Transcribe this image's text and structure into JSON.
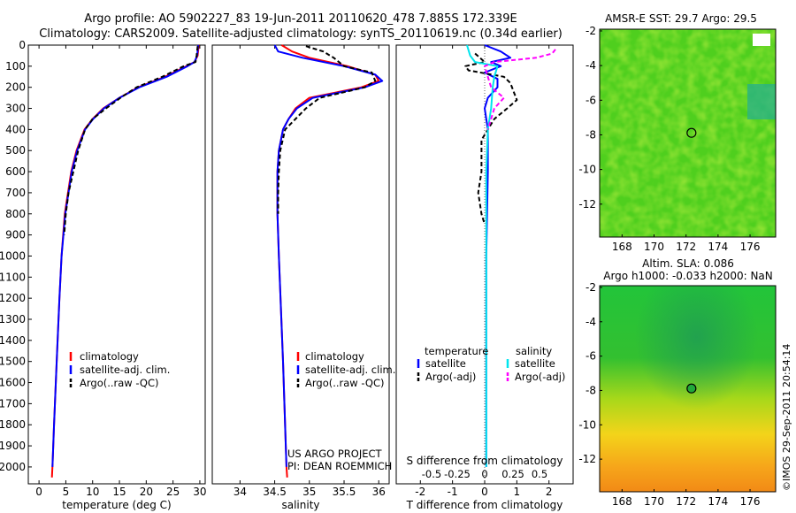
{
  "header": {
    "line1": "Argo profile: AO 5902227_83 19-Jun-2011 20110620_478 7.885S 172.339E",
    "line2": "Climatology: CARS2009. Satellite-adjusted climatology: synTS_20110619.nc (0.34d earlier)"
  },
  "colors": {
    "climatology": "#ff0000",
    "satellite": "#0000ff",
    "argo": "#000000",
    "salinity_satellite": "#00e5ee",
    "salinity_argo": "#ff00ff"
  },
  "chart_data": [
    {
      "type": "line",
      "id": "temperature",
      "xlabel": "temperature (deg C)",
      "ylabel": "",
      "xlim": [
        -2,
        31
      ],
      "ylim": [
        2080,
        0
      ],
      "x_ticks": [
        0,
        5,
        10,
        15,
        20,
        25,
        30
      ],
      "y_ticks": [
        0,
        100,
        200,
        300,
        400,
        500,
        600,
        700,
        800,
        900,
        1000,
        1100,
        1200,
        1300,
        1400,
        1500,
        1600,
        1700,
        1800,
        1900,
        2000
      ],
      "legend": [
        "climatology",
        "satellite-adj. clim.",
        "Argo(..raw -QC)"
      ],
      "legend_position": "bottom-left",
      "series": [
        {
          "name": "climatology",
          "color": "#ff0000",
          "style": "solid",
          "depth": [
            0,
            50,
            80,
            100,
            150,
            200,
            250,
            300,
            350,
            400,
            500,
            600,
            800,
            1000,
            1200,
            1500,
            1800,
            2000,
            2050
          ],
          "values": [
            29.8,
            29.6,
            29.0,
            27.5,
            23.5,
            18.5,
            15.0,
            12.0,
            10.0,
            8.5,
            7.0,
            6.0,
            4.8,
            4.2,
            3.8,
            3.3,
            2.8,
            2.5,
            2.4
          ]
        },
        {
          "name": "satellite-adj. clim.",
          "color": "#0000ff",
          "style": "solid",
          "depth": [
            0,
            50,
            80,
            100,
            150,
            200,
            250,
            300,
            350,
            400,
            500,
            600,
            800,
            1000,
            1200,
            1500,
            1800,
            2000
          ],
          "values": [
            29.7,
            29.5,
            29.0,
            27.7,
            23.8,
            18.7,
            15.0,
            12.1,
            10.1,
            8.6,
            7.1,
            6.1,
            4.9,
            4.2,
            3.8,
            3.3,
            2.8,
            2.5
          ]
        },
        {
          "name": "Argo(..raw -QC)",
          "color": "#000000",
          "style": "dash",
          "depth": [
            5,
            50,
            80,
            100,
            150,
            200,
            250,
            300,
            350,
            400,
            500,
            600,
            700,
            800,
            900
          ],
          "values": [
            29.6,
            29.4,
            29.2,
            27.0,
            23.0,
            18.2,
            15.2,
            12.5,
            10.0,
            8.6,
            7.3,
            6.4,
            5.5,
            5.0,
            4.7
          ]
        }
      ]
    },
    {
      "type": "line",
      "id": "salinity",
      "xlabel": "salinity",
      "ylabel": "",
      "xlim": [
        33.6,
        36.15
      ],
      "ylim": [
        2080,
        0
      ],
      "x_ticks": [
        34,
        34.5,
        35,
        35.5,
        36
      ],
      "legend": [
        "climatology",
        "satellite-adj. clim.",
        "Argo(..raw -QC)"
      ],
      "legend_position": "bottom-right",
      "annotation": [
        "US ARGO PROJECT",
        "PI: DEAN ROEMMICH"
      ],
      "series": [
        {
          "name": "climatology",
          "color": "#ff0000",
          "style": "solid",
          "depth": [
            0,
            30,
            60,
            100,
            140,
            170,
            200,
            250,
            300,
            350,
            400,
            500,
            600,
            800,
            1000,
            1500,
            2000,
            2050
          ],
          "values": [
            34.6,
            34.75,
            35.0,
            35.55,
            35.95,
            36.0,
            35.75,
            35.0,
            34.8,
            34.7,
            34.62,
            34.56,
            34.54,
            34.54,
            34.56,
            34.62,
            34.67,
            34.68
          ]
        },
        {
          "name": "satellite-adj. clim.",
          "color": "#0000ff",
          "style": "solid",
          "depth": [
            0,
            30,
            60,
            100,
            140,
            170,
            200,
            250,
            300,
            350,
            400,
            500,
            600,
            800,
            1000,
            1500,
            2000
          ],
          "values": [
            34.5,
            34.55,
            34.9,
            35.5,
            35.95,
            36.05,
            35.8,
            35.05,
            34.82,
            34.7,
            34.62,
            34.56,
            34.54,
            34.54,
            34.56,
            34.62,
            34.67
          ]
        },
        {
          "name": "Argo(..raw -QC)",
          "color": "#000000",
          "style": "dash",
          "depth": [
            5,
            30,
            60,
            100,
            130,
            170,
            200,
            250,
            300,
            350,
            400,
            500,
            600,
            700,
            800
          ],
          "values": [
            34.95,
            35.2,
            35.35,
            35.5,
            35.9,
            35.95,
            35.8,
            35.15,
            34.95,
            34.8,
            34.65,
            34.58,
            34.56,
            34.55,
            34.55
          ]
        }
      ]
    },
    {
      "type": "line",
      "id": "differences",
      "xlabel": "T difference from climatology",
      "xlabel_top": "S difference from climatology",
      "ylabel": "",
      "xlim": [
        -2.75,
        2.75
      ],
      "ylim": [
        2080,
        0
      ],
      "x_ticks": [
        -2,
        -1,
        0,
        1,
        2
      ],
      "s_ticks": [
        "-0.5",
        "-0.25",
        "0",
        "0.25",
        "0.5"
      ],
      "legend_titles": [
        "temperature",
        "salinity"
      ],
      "legend": [
        "satellite",
        "Argo(-adj)",
        "satellite",
        "Argo(-adj)"
      ],
      "legend_position": "bottom",
      "series": [
        {
          "name": "T satellite",
          "color": "#0000ff",
          "style": "solid",
          "depth": [
            0,
            30,
            60,
            80,
            100,
            130,
            160,
            200,
            250,
            300,
            400,
            600,
            1000,
            1500,
            2000
          ],
          "values": [
            0.0,
            0.5,
            0.8,
            0.2,
            0.5,
            0.0,
            0.4,
            0.4,
            0.1,
            0.0,
            0.1,
            0.1,
            0.05,
            0.05,
            0.05
          ]
        },
        {
          "name": "T Argo(-adj)",
          "color": "#000000",
          "style": "dash",
          "depth": [
            40,
            80,
            100,
            120,
            150,
            180,
            220,
            260,
            300,
            350,
            400,
            450,
            600,
            700,
            800,
            850
          ],
          "values": [
            -0.3,
            0.0,
            -0.6,
            -0.5,
            0.6,
            0.8,
            0.9,
            1.0,
            0.7,
            0.3,
            0.1,
            -0.1,
            -0.1,
            -0.2,
            -0.1,
            0.0
          ]
        },
        {
          "name": "S satellite",
          "color": "#00e5ee",
          "style": "solid",
          "depth": [
            0,
            50,
            80,
            100,
            150,
            200,
            300,
            400,
            600,
            1000,
            1500,
            2000
          ],
          "values": [
            -0.55,
            -0.45,
            -0.3,
            0.4,
            0.3,
            0.25,
            0.2,
            0.1,
            0.05,
            0.05,
            0.05,
            0.05
          ]
        },
        {
          "name": "S Argo(-adj)",
          "color": "#ff00ff",
          "style": "dash",
          "depth": [
            20,
            40,
            60,
            80,
            100,
            150,
            200,
            250,
            300,
            400
          ],
          "values": [
            2.2,
            2.1,
            1.6,
            0.3,
            0.0,
            0.1,
            0.2,
            0.6,
            0.3,
            0.1
          ]
        }
      ]
    }
  ],
  "maps": [
    {
      "id": "sst",
      "title": "AMSR-E SST: 29.7 Argo: 29.5",
      "x_ticks": [
        "168",
        "170",
        "172",
        "174",
        "176"
      ],
      "y_ticks": [
        "-2",
        "-4",
        "-6",
        "-8",
        "-10",
        "-12"
      ],
      "xlim": [
        166.6,
        177.6
      ],
      "ylim": [
        -13.9,
        -1.9
      ],
      "marker": {
        "lon": 172.339,
        "lat": -7.885
      }
    },
    {
      "id": "sla",
      "title_line1": "Altim. SLA: 0.086",
      "title_line2": "Argo h1000: -0.033 h2000: NaN",
      "x_ticks": [
        "168",
        "170",
        "172",
        "174",
        "176"
      ],
      "y_ticks": [
        "-2",
        "-4",
        "-6",
        "-8",
        "-10",
        "-12"
      ],
      "xlim": [
        166.6,
        177.6
      ],
      "ylim": [
        -13.9,
        -1.9
      ],
      "marker": {
        "lon": 172.339,
        "lat": -7.885
      }
    }
  ],
  "footer": {
    "stamp": "©IMOS 29-Sep-2011 20:54:14"
  }
}
